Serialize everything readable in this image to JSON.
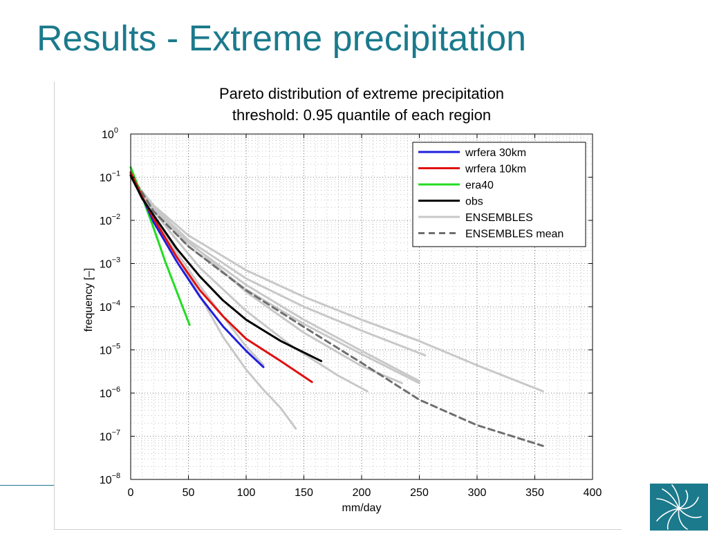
{
  "slide": {
    "title": "Results - Extreme precipitation"
  },
  "colors": {
    "title": "#1b7a8c",
    "logo": "#1b7a8c"
  },
  "logo": {
    "icon": "spiral-logo-icon"
  },
  "chart_data": {
    "type": "line",
    "title": "Pareto distribution of extreme precipitation",
    "subtitle": "threshold: 0.95 quantile of each region",
    "xlabel": "mm/day",
    "ylabel": "frequency [–]",
    "xlim": [
      0,
      400
    ],
    "ylim": [
      1e-08,
      1
    ],
    "yscale": "log",
    "grid": true,
    "legend_position": "top-right",
    "xticks": [
      0,
      50,
      100,
      150,
      200,
      250,
      300,
      350,
      400
    ],
    "yticks": [
      {
        "value": 1e-08,
        "base": "10",
        "exp": "−8"
      },
      {
        "value": 1e-07,
        "base": "10",
        "exp": "−7"
      },
      {
        "value": 1e-06,
        "base": "10",
        "exp": "−6"
      },
      {
        "value": 1e-05,
        "base": "10",
        "exp": "−5"
      },
      {
        "value": 0.0001,
        "base": "10",
        "exp": "−4"
      },
      {
        "value": 0.001,
        "base": "10",
        "exp": "−3"
      },
      {
        "value": 0.01,
        "base": "10",
        "exp": "−2"
      },
      {
        "value": 0.1,
        "base": "10",
        "exp": "−1"
      },
      {
        "value": 1,
        "base": "10",
        "exp": "0"
      }
    ],
    "legend": [
      {
        "label": "wrfera 30km",
        "color": "#1f1fdd",
        "dash": false
      },
      {
        "label": "wrfera 10km",
        "color": "#e01010",
        "dash": false
      },
      {
        "label": "era40",
        "color": "#22dd22",
        "dash": false
      },
      {
        "label": "obs",
        "color": "#000000",
        "dash": false
      },
      {
        "label": "ENSEMBLES",
        "color": "#c8c8c8",
        "dash": false
      },
      {
        "label": "ENSEMBLES mean",
        "color": "#6e6e6e",
        "dash": true
      }
    ],
    "series": [
      {
        "name": "ENSEMBLES",
        "color": "#c8c8c8",
        "dash": false,
        "points": [
          [
            0,
            0.1
          ],
          [
            10,
            0.035
          ],
          [
            20,
            0.012
          ],
          [
            40,
            0.0015
          ],
          [
            60,
            0.00018
          ],
          [
            80,
            2e-05
          ],
          [
            100,
            3.5e-06
          ],
          [
            115,
            1.2e-06
          ],
          [
            130,
            4.5e-07
          ],
          [
            143,
            1.5e-07
          ]
        ]
      },
      {
        "name": "ENSEMBLES",
        "color": "#c8c8c8",
        "dash": false,
        "points": [
          [
            0,
            0.1
          ],
          [
            20,
            0.012
          ],
          [
            40,
            0.0018
          ],
          [
            60,
            0.0003
          ],
          [
            80,
            6e-05
          ],
          [
            100,
            1.2e-05
          ],
          [
            115,
            4.5e-06
          ]
        ]
      },
      {
        "name": "ENSEMBLES",
        "color": "#c8c8c8",
        "dash": false,
        "points": [
          [
            0,
            0.1
          ],
          [
            20,
            0.016
          ],
          [
            40,
            0.0035
          ],
          [
            60,
            0.0008
          ],
          [
            100,
            8e-05
          ],
          [
            140,
            1.2e-05
          ],
          [
            180,
            2.5e-06
          ],
          [
            205,
            1.1e-06
          ]
        ]
      },
      {
        "name": "ENSEMBLES",
        "color": "#c8c8c8",
        "dash": false,
        "points": [
          [
            0,
            0.1
          ],
          [
            20,
            0.018
          ],
          [
            50,
            0.0025
          ],
          [
            100,
            0.00025
          ],
          [
            150,
            4e-05
          ],
          [
            200,
            8e-06
          ],
          [
            250,
            1.7e-06
          ]
        ]
      },
      {
        "name": "ENSEMBLES",
        "color": "#c8c8c8",
        "dash": false,
        "points": [
          [
            0,
            0.1
          ],
          [
            20,
            0.02
          ],
          [
            50,
            0.0035
          ],
          [
            100,
            0.00045
          ],
          [
            150,
            0.0001
          ],
          [
            200,
            2.8e-05
          ],
          [
            255,
            7.5e-06
          ]
        ]
      },
      {
        "name": "ENSEMBLES",
        "color": "#c8c8c8",
        "dash": false,
        "points": [
          [
            0,
            0.1
          ],
          [
            20,
            0.022
          ],
          [
            50,
            0.0045
          ],
          [
            100,
            0.0007
          ],
          [
            150,
            0.00017
          ],
          [
            200,
            5e-05
          ],
          [
            250,
            1.6e-05
          ],
          [
            300,
            4.4e-06
          ],
          [
            357,
            1.1e-06
          ]
        ]
      },
      {
        "name": "ENSEMBLES",
        "color": "#c8c8c8",
        "dash": false,
        "points": [
          [
            0,
            0.1
          ],
          [
            20,
            0.019
          ],
          [
            50,
            0.003
          ],
          [
            100,
            0.00032
          ],
          [
            150,
            5e-05
          ],
          [
            200,
            9.5e-06
          ],
          [
            250,
            1.9e-06
          ]
        ]
      },
      {
        "name": "ENSEMBLES",
        "color": "#c8c8c8",
        "dash": false,
        "points": [
          [
            0,
            0.1
          ],
          [
            20,
            0.021
          ],
          [
            50,
            0.0033
          ],
          [
            100,
            0.00022
          ],
          [
            150,
            2.5e-05
          ],
          [
            200,
            4.2e-06
          ],
          [
            235,
            1.7e-06
          ]
        ]
      },
      {
        "name": "ENSEMBLES mean",
        "color": "#6e6e6e",
        "dash": true,
        "points": [
          [
            0,
            0.12
          ],
          [
            20,
            0.016
          ],
          [
            50,
            0.0025
          ],
          [
            100,
            0.00024
          ],
          [
            150,
            3.4e-05
          ],
          [
            200,
            5e-06
          ],
          [
            250,
            7e-07
          ],
          [
            300,
            1.8e-07
          ],
          [
            357,
            6e-08
          ]
        ]
      },
      {
        "name": "era40",
        "color": "#22dd22",
        "dash": false,
        "points": [
          [
            0,
            0.17
          ],
          [
            10,
            0.035
          ],
          [
            20,
            0.0065
          ],
          [
            30,
            0.0011
          ],
          [
            40,
            0.00022
          ],
          [
            51,
            3.8e-05
          ]
        ]
      },
      {
        "name": "wrfera 30km",
        "color": "#1f1fdd",
        "dash": false,
        "points": [
          [
            0,
            0.13
          ],
          [
            10,
            0.035
          ],
          [
            20,
            0.009
          ],
          [
            40,
            0.0011
          ],
          [
            60,
            0.00017
          ],
          [
            80,
            3.5e-05
          ],
          [
            100,
            9.5e-06
          ],
          [
            115,
            4e-06
          ]
        ]
      },
      {
        "name": "wrfera 10km",
        "color": "#e01010",
        "dash": false,
        "points": [
          [
            0,
            0.13
          ],
          [
            10,
            0.035
          ],
          [
            20,
            0.011
          ],
          [
            40,
            0.0014
          ],
          [
            60,
            0.00024
          ],
          [
            80,
            6e-05
          ],
          [
            100,
            1.8e-05
          ],
          [
            130,
            5.5e-06
          ],
          [
            157,
            1.8e-06
          ]
        ]
      },
      {
        "name": "obs",
        "color": "#000000",
        "dash": false,
        "points": [
          [
            0,
            0.11
          ],
          [
            10,
            0.032
          ],
          [
            20,
            0.013
          ],
          [
            40,
            0.0022
          ],
          [
            60,
            0.0005
          ],
          [
            80,
            0.00014
          ],
          [
            100,
            5e-05
          ],
          [
            130,
            1.6e-05
          ],
          [
            165,
            5.5e-06
          ]
        ]
      }
    ]
  }
}
